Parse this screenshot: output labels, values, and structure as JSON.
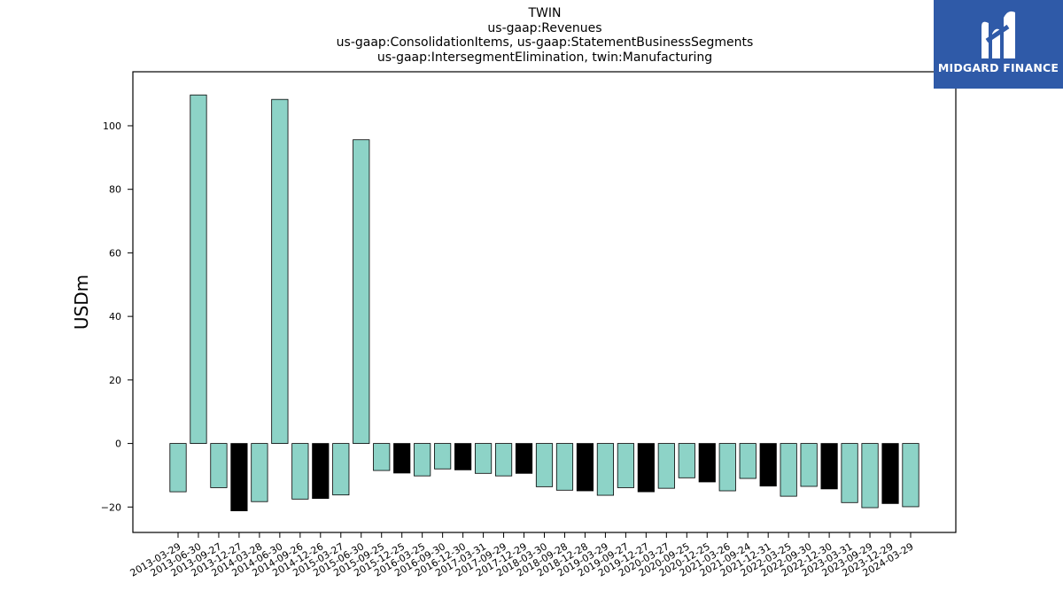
{
  "chart_data": {
    "type": "bar",
    "title_lines": [
      "TWIN",
      "us-gaap:Revenues",
      "us-gaap:ConsolidationItems, us-gaap:StatementBusinessSegments",
      "us-gaap:IntersegmentElimination, twin:Manufacturing"
    ],
    "ylabel": "USDm",
    "xlabel": "",
    "ylim": [
      -28,
      117
    ],
    "yticks": [
      -20,
      0,
      20,
      40,
      60,
      80,
      100
    ],
    "grid": false,
    "categories": [
      "2013-03-29",
      "2013-06-30",
      "2013-09-27",
      "2013-12-27",
      "2014-03-28",
      "2014-06-30",
      "2014-09-26",
      "2014-12-26",
      "2015-03-27",
      "2015-06-30",
      "2015-09-25",
      "2015-12-25",
      "2016-03-25",
      "2016-09-30",
      "2016-12-30",
      "2017-03-31",
      "2017-09-29",
      "2017-12-29",
      "2018-03-30",
      "2018-09-28",
      "2018-12-28",
      "2019-03-29",
      "2019-09-27",
      "2019-12-27",
      "2020-03-27",
      "2020-09-25",
      "2020-12-25",
      "2021-03-26",
      "2021-09-24",
      "2021-12-31",
      "2022-03-25",
      "2022-09-30",
      "2022-12-30",
      "2023-03-31",
      "2023-09-29",
      "2023-12-29",
      "2024-03-29"
    ],
    "values": [
      -15.2,
      109.7,
      -13.9,
      -21.2,
      -18.3,
      108.3,
      -17.5,
      -17.3,
      -16.2,
      95.6,
      -8.5,
      -9.3,
      -10.2,
      -8.0,
      -8.3,
      -9.4,
      -10.2,
      -9.4,
      -13.6,
      -14.7,
      -14.9,
      -16.3,
      -13.9,
      -15.2,
      -14.1,
      -10.8,
      -12.1,
      -14.9,
      -11.0,
      -13.4,
      -16.6,
      -13.5,
      -14.3,
      -18.6,
      -20.2,
      -18.9,
      -19.9
    ],
    "highlight": [
      false,
      false,
      false,
      true,
      false,
      false,
      false,
      true,
      false,
      false,
      false,
      true,
      false,
      false,
      true,
      false,
      false,
      true,
      false,
      false,
      true,
      false,
      false,
      true,
      false,
      false,
      true,
      false,
      false,
      true,
      false,
      false,
      true,
      false,
      false,
      true,
      false
    ],
    "colors": {
      "normal": "#8dd3c7",
      "highlight": "#000000",
      "edge": "#000000"
    }
  },
  "logo": {
    "text": "MIDGARD FINANCE",
    "color": "#2f5aa8"
  }
}
